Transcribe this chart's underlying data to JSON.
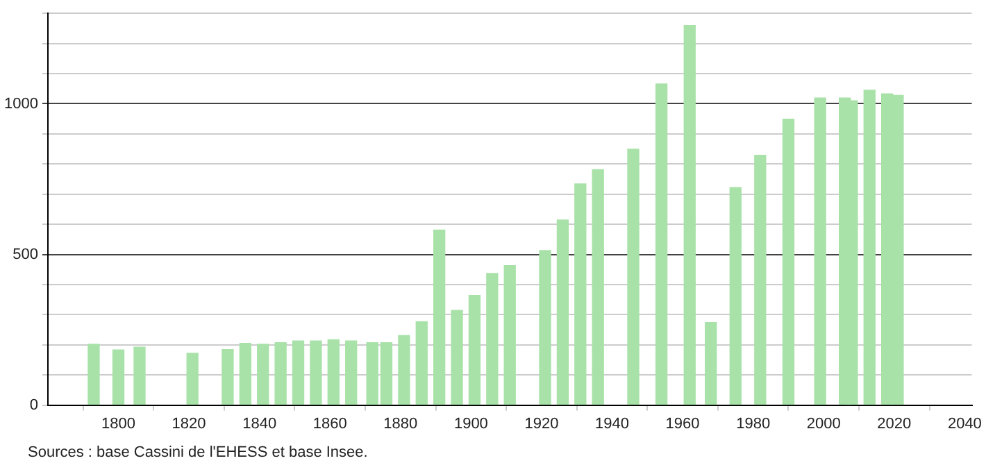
{
  "chart_data": {
    "type": "bar",
    "x": [
      1793,
      1800,
      1806,
      1821,
      1831,
      1836,
      1841,
      1846,
      1851,
      1856,
      1861,
      1866,
      1872,
      1876,
      1881,
      1886,
      1891,
      1896,
      1901,
      1906,
      1911,
      1921,
      1926,
      1931,
      1936,
      1946,
      1954,
      1962,
      1968,
      1975,
      1982,
      1990,
      1999,
      2006,
      2008,
      2013,
      2018,
      2021
    ],
    "values": [
      202,
      183,
      192,
      172,
      184,
      205,
      202,
      207,
      213,
      213,
      217,
      213,
      207,
      207,
      231,
      277,
      581,
      314,
      364,
      437,
      463,
      513,
      614,
      734,
      781,
      849,
      1066,
      1260,
      274,
      722,
      829,
      949,
      1019,
      1019,
      1010,
      1045,
      1033,
      1028
    ],
    "color": "#a8e2a8",
    "xlim": [
      1780,
      2042
    ],
    "xticks": [
      1800,
      1820,
      1840,
      1860,
      1880,
      1900,
      1920,
      1940,
      1960,
      1980,
      2000,
      2020,
      2040
    ],
    "ylim": [
      0,
      1300
    ],
    "yticks": [
      0,
      {
        "value": 100,
        "label": null
      },
      {
        "value": 200,
        "label": null
      },
      {
        "value": 300,
        "label": null
      },
      {
        "value": 400,
        "label": null
      },
      500,
      {
        "value": 600,
        "label": null
      },
      {
        "value": 700,
        "label": null
      },
      {
        "value": 800,
        "label": null
      },
      {
        "value": 900,
        "label": null
      },
      1000,
      {
        "value": 1100,
        "label": null
      },
      {
        "value": 1200,
        "label": null
      },
      {
        "value": 1300,
        "label": null
      }
    ],
    "grid": "y",
    "legend": false,
    "annotations": [
      "Sources : base Cassini de l'EHESS et base Insee."
    ]
  }
}
